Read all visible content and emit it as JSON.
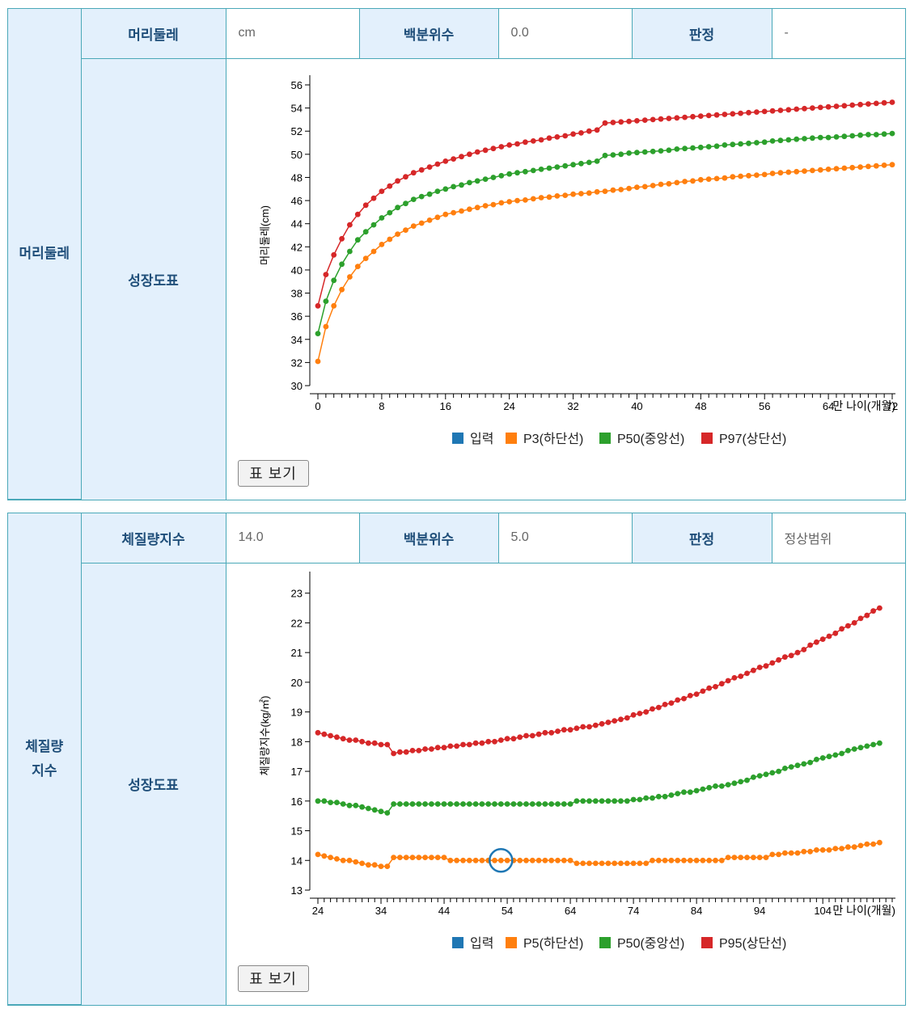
{
  "sections": [
    {
      "side_label": "머리둘레",
      "metric_label": "머리둘레",
      "metric_value": "cm",
      "percentile_label": "백분위수",
      "percentile_value": "0.0",
      "judgement_label": "판정",
      "judgement_value": "-",
      "chart_label": "성장도표",
      "table_button": "표 보기"
    },
    {
      "side_label": "체질량\n지수",
      "metric_label": "체질량지수",
      "metric_value": "14.0",
      "percentile_label": "백분위수",
      "percentile_value": "5.0",
      "judgement_label": "판정",
      "judgement_value": "정상범위",
      "chart_label": "성장도표",
      "table_button": "표 보기"
    }
  ],
  "colors": {
    "input": "#1f77b4",
    "low": "#ff7f0e",
    "mid": "#2ca02c",
    "high": "#d62728",
    "border": "#4aa8b8",
    "header_bg": "#e3f0fc"
  },
  "chart_data": [
    {
      "type": "line",
      "title": "",
      "xlabel": "만 나이(개월)",
      "ylabel": "머리둘레(cm)",
      "xlim": [
        0,
        72
      ],
      "ylim": [
        30,
        56
      ],
      "xticks": [
        0,
        8,
        16,
        24,
        32,
        40,
        48,
        56,
        64,
        72
      ],
      "yticks": [
        30,
        32,
        34,
        36,
        38,
        40,
        42,
        44,
        46,
        48,
        50,
        52,
        54,
        56
      ],
      "x_start": 0,
      "x_end": 72,
      "x_step": 1,
      "legend": [
        "입력",
        "P3(하단선)",
        "P50(중앙선)",
        "P97(상단선)"
      ],
      "legend_position": "bottom",
      "series": [
        {
          "name": "P3(하단선)",
          "color": "#ff7f0e",
          "keys": [
            [
              0,
              32.1
            ],
            [
              1,
              35.1
            ],
            [
              2,
              36.9
            ],
            [
              3,
              38.3
            ],
            [
              4,
              39.4
            ],
            [
              5,
              40.3
            ],
            [
              6,
              41.0
            ],
            [
              8,
              42.2
            ],
            [
              10,
              43.1
            ],
            [
              12,
              43.8
            ],
            [
              16,
              44.8
            ],
            [
              20,
              45.4
            ],
            [
              24,
              45.9
            ],
            [
              30,
              46.4
            ],
            [
              36,
              46.8
            ],
            [
              48,
              47.8
            ],
            [
              60,
              48.5
            ],
            [
              72,
              49.1
            ]
          ]
        },
        {
          "name": "P50(중앙선)",
          "color": "#2ca02c",
          "keys": [
            [
              0,
              34.5
            ],
            [
              1,
              37.3
            ],
            [
              2,
              39.1
            ],
            [
              3,
              40.5
            ],
            [
              4,
              41.6
            ],
            [
              5,
              42.6
            ],
            [
              6,
              43.3
            ],
            [
              8,
              44.5
            ],
            [
              10,
              45.4
            ],
            [
              12,
              46.1
            ],
            [
              16,
              47.0
            ],
            [
              20,
              47.7
            ],
            [
              24,
              48.3
            ],
            [
              30,
              48.9
            ],
            [
              35,
              49.4
            ],
            [
              36,
              49.9
            ],
            [
              48,
              50.6
            ],
            [
              60,
              51.3
            ],
            [
              72,
              51.8
            ]
          ]
        },
        {
          "name": "P97(상단선)",
          "color": "#d62728",
          "keys": [
            [
              0,
              36.9
            ],
            [
              1,
              39.6
            ],
            [
              2,
              41.3
            ],
            [
              3,
              42.7
            ],
            [
              4,
              43.9
            ],
            [
              5,
              44.8
            ],
            [
              6,
              45.6
            ],
            [
              8,
              46.8
            ],
            [
              10,
              47.7
            ],
            [
              12,
              48.4
            ],
            [
              16,
              49.4
            ],
            [
              20,
              50.2
            ],
            [
              24,
              50.8
            ],
            [
              30,
              51.5
            ],
            [
              35,
              52.1
            ],
            [
              36,
              52.7
            ],
            [
              48,
              53.3
            ],
            [
              60,
              53.9
            ],
            [
              72,
              54.5
            ]
          ]
        }
      ],
      "input_points": []
    },
    {
      "type": "line",
      "title": "",
      "xlabel": "만 나이(개월)",
      "ylabel": "체질량지수(kg/㎡)",
      "xlim": [
        24,
        115
      ],
      "ylim": [
        13,
        23.4
      ],
      "xticks": [
        24,
        34,
        44,
        54,
        64,
        74,
        84,
        94,
        104
      ],
      "yticks": [
        13,
        14,
        15,
        16,
        17,
        18,
        19,
        20,
        21,
        22,
        23
      ],
      "x_start": 24,
      "x_end": 113,
      "x_step": 1,
      "legend": [
        "입력",
        "P5(하단선)",
        "P50(중앙선)",
        "P95(상단선)"
      ],
      "legend_position": "bottom",
      "series": [
        {
          "name": "P5(하단선)",
          "color": "#ff7f0e",
          "keys": [
            [
              24,
              14.2
            ],
            [
              27,
              14.05
            ],
            [
              31,
              13.9
            ],
            [
              34,
              13.8
            ],
            [
              35,
              13.8
            ],
            [
              36,
              14.1
            ],
            [
              44,
              14.1
            ],
            [
              45,
              14.0
            ],
            [
              64,
              14.0
            ],
            [
              65,
              13.9
            ],
            [
              76,
              13.9
            ],
            [
              77,
              14.0
            ],
            [
              88,
              14.0
            ],
            [
              89,
              14.1
            ],
            [
              95,
              14.1
            ],
            [
              96,
              14.2
            ],
            [
              100,
              14.25
            ],
            [
              101,
              14.3
            ],
            [
              105,
              14.35
            ],
            [
              106,
              14.4
            ],
            [
              109,
              14.45
            ],
            [
              110,
              14.5
            ],
            [
              113,
              14.6
            ]
          ]
        },
        {
          "name": "P50(중앙선)",
          "color": "#2ca02c",
          "keys": [
            [
              24,
              16.0
            ],
            [
              28,
              15.9
            ],
            [
              32,
              15.75
            ],
            [
              35,
              15.6
            ],
            [
              36,
              15.9
            ],
            [
              64,
              15.9
            ],
            [
              65,
              16.0
            ],
            [
              73,
              16.0
            ],
            [
              80,
              16.2
            ],
            [
              85,
              16.4
            ],
            [
              90,
              16.6
            ],
            [
              95,
              16.9
            ],
            [
              100,
              17.2
            ],
            [
              105,
              17.5
            ],
            [
              110,
              17.8
            ],
            [
              113,
              17.95
            ]
          ]
        },
        {
          "name": "P95(상단선)",
          "color": "#d62728",
          "keys": [
            [
              24,
              18.3
            ],
            [
              28,
              18.1
            ],
            [
              32,
              17.95
            ],
            [
              35,
              17.9
            ],
            [
              36,
              17.6
            ],
            [
              40,
              17.7
            ],
            [
              44,
              17.8
            ],
            [
              50,
              17.95
            ],
            [
              56,
              18.15
            ],
            [
              62,
              18.35
            ],
            [
              68,
              18.55
            ],
            [
              72,
              18.75
            ],
            [
              76,
              19.0
            ],
            [
              80,
              19.3
            ],
            [
              84,
              19.6
            ],
            [
              88,
              19.95
            ],
            [
              92,
              20.3
            ],
            [
              96,
              20.65
            ],
            [
              100,
              21.0
            ],
            [
              104,
              21.45
            ],
            [
              108,
              21.9
            ],
            [
              113,
              22.5
            ]
          ]
        }
      ],
      "input_points": [
        {
          "x": 53,
          "y": 14.0
        }
      ]
    }
  ]
}
